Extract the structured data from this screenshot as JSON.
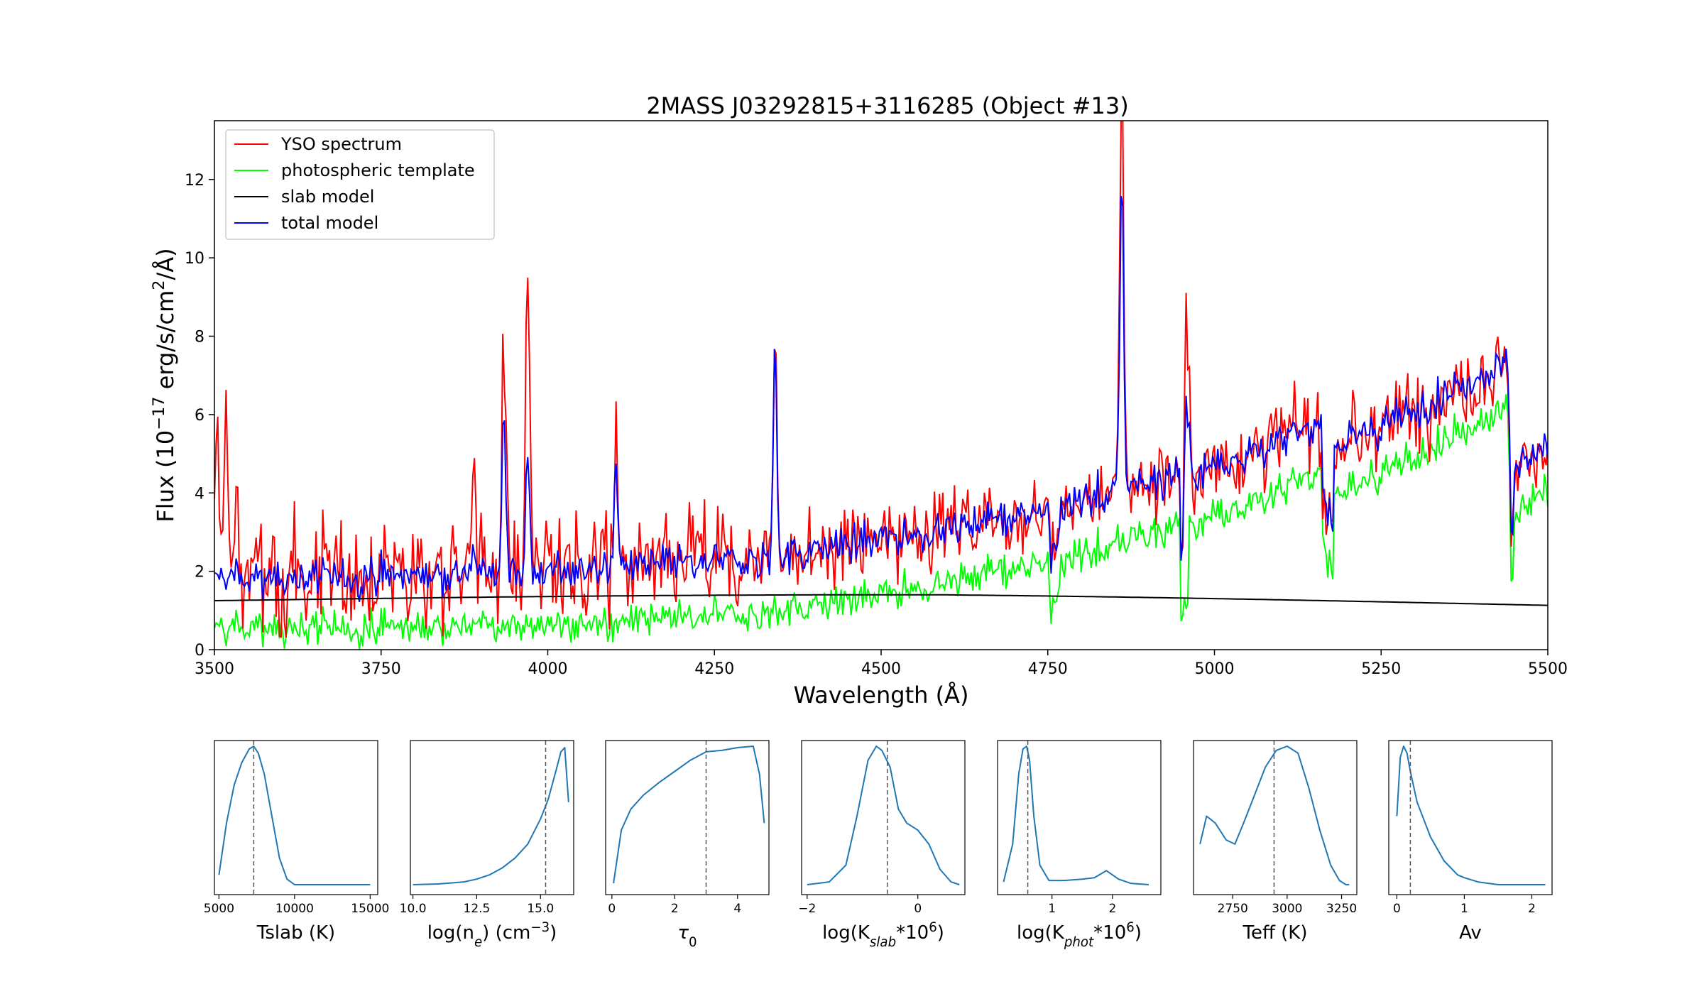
{
  "chart_data": [
    {
      "type": "line",
      "title": "2MASS J03292815+3116285 (Object #13)",
      "xlabel": "Wavelength (Å)",
      "ylabel_parts": [
        "Flux (10",
        "−17",
        " erg/s/cm",
        "2",
        "/Å)"
      ],
      "xlim": [
        3500,
        5500
      ],
      "ylim": [
        0,
        13.5
      ],
      "xticks": [
        3500,
        3750,
        4000,
        4250,
        4500,
        4750,
        5000,
        5250,
        5500
      ],
      "yticks": [
        0,
        2,
        4,
        6,
        8,
        10,
        12
      ],
      "legend_position": "upper-left",
      "colors": {
        "yso": "#ff0000",
        "photosphere": "#00ff00",
        "slab": "#000000",
        "total": "#0000ff"
      },
      "series": [
        {
          "key": "yso",
          "name": "YSO spectrum"
        },
        {
          "key": "photosphere",
          "name": "photospheric template"
        },
        {
          "key": "slab",
          "name": "slab model"
        },
        {
          "key": "total",
          "name": "total model"
        }
      ],
      "emission_lines": [
        {
          "x": 3504,
          "yso": 6.2,
          "total": 2.0
        },
        {
          "x": 3517,
          "yso": 6.9,
          "total": 2.2
        },
        {
          "x": 3533,
          "yso": 4.8,
          "total": 2.0
        },
        {
          "x": 3889,
          "yso": 4.0,
          "total": 2.5
        },
        {
          "x": 3934,
          "yso": 8.5,
          "total": 6.2
        },
        {
          "x": 3970,
          "yso": 9.6,
          "total": 5.0
        },
        {
          "x": 4102,
          "yso": 5.5,
          "total": 4.6
        },
        {
          "x": 4341,
          "yso": 7.3,
          "total": 7.2
        },
        {
          "x": 4861,
          "yso": 13.4,
          "total": 10.0
        },
        {
          "x": 4958,
          "yso": 8.4,
          "total": 6.0
        }
      ]
    },
    {
      "type": "line",
      "xlabel": "Tslab (K)",
      "xlim": [
        4700,
        15500
      ],
      "xticks": [
        5000,
        10000,
        15000
      ],
      "ref": 7300,
      "x": [
        5000,
        5500,
        6000,
        6500,
        7000,
        7300,
        7600,
        8000,
        8500,
        9000,
        9500,
        10000,
        11000,
        12000,
        13000,
        14000,
        15000
      ],
      "values": [
        0.08,
        0.45,
        0.72,
        0.88,
        0.98,
        1.0,
        0.95,
        0.8,
        0.5,
        0.2,
        0.05,
        0.01,
        0.01,
        0.01,
        0.01,
        0.01,
        0.01
      ]
    },
    {
      "type": "line",
      "xlabel_parts": [
        "log(n",
        "e",
        ") (cm",
        "−3",
        ")"
      ],
      "xlim": [
        9.9,
        16.3
      ],
      "xticks": [
        10.0,
        12.5,
        15.0
      ],
      "xtick_labels": [
        "10.0",
        "12.5",
        "15.0"
      ],
      "ref": 15.2,
      "x": [
        10.0,
        11.0,
        12.0,
        12.5,
        13.0,
        13.5,
        14.0,
        14.5,
        15.0,
        15.3,
        15.6,
        15.8,
        15.95,
        16.1
      ],
      "values": [
        0.01,
        0.015,
        0.03,
        0.05,
        0.08,
        0.13,
        0.2,
        0.3,
        0.48,
        0.62,
        0.82,
        0.96,
        0.99,
        0.6
      ]
    },
    {
      "type": "line",
      "xlabel_parts": [
        "τ",
        "0"
      ],
      "xlim": [
        -0.2,
        5.0
      ],
      "xticks": [
        0,
        2,
        4
      ],
      "ref": 3.0,
      "x": [
        0.05,
        0.3,
        0.6,
        1.0,
        1.5,
        2.0,
        2.5,
        3.0,
        3.5,
        4.0,
        4.5,
        4.7,
        4.85
      ],
      "values": [
        0.02,
        0.4,
        0.55,
        0.65,
        0.74,
        0.82,
        0.9,
        0.96,
        0.97,
        0.99,
        1.0,
        0.8,
        0.45
      ]
    },
    {
      "type": "line",
      "xlabel_parts": [
        "log(K",
        "slab",
        "*10",
        "6",
        ")"
      ],
      "xlim": [
        -2.1,
        0.85
      ],
      "xticks": [
        -2,
        0
      ],
      "xtick_labels": [
        "−2",
        "0"
      ],
      "ref": -0.55,
      "x": [
        -2.0,
        -1.6,
        -1.3,
        -1.1,
        -0.9,
        -0.75,
        -0.65,
        -0.5,
        -0.35,
        -0.2,
        0.0,
        0.2,
        0.4,
        0.6,
        0.75
      ],
      "values": [
        0.01,
        0.03,
        0.15,
        0.5,
        0.9,
        1.0,
        0.97,
        0.85,
        0.55,
        0.45,
        0.4,
        0.3,
        0.12,
        0.03,
        0.01
      ]
    },
    {
      "type": "line",
      "xlabel_parts": [
        "log(K",
        "phot",
        "*10",
        "6",
        ")"
      ],
      "xlim": [
        0.1,
        2.8
      ],
      "xticks": [
        1,
        2
      ],
      "ref": 0.6,
      "x": [
        0.2,
        0.35,
        0.45,
        0.52,
        0.58,
        0.63,
        0.7,
        0.8,
        0.95,
        1.2,
        1.5,
        1.7,
        1.9,
        2.1,
        2.3,
        2.6
      ],
      "values": [
        0.03,
        0.3,
        0.8,
        0.98,
        1.0,
        0.9,
        0.5,
        0.15,
        0.04,
        0.04,
        0.05,
        0.06,
        0.11,
        0.05,
        0.02,
        0.01
      ]
    },
    {
      "type": "line",
      "xlabel": "Teff (K)",
      "xlim": [
        2570,
        3320
      ],
      "xticks": [
        2750,
        3000,
        3250
      ],
      "ref": 2940,
      "x": [
        2600,
        2630,
        2670,
        2720,
        2760,
        2800,
        2850,
        2900,
        2950,
        3000,
        3050,
        3100,
        3150,
        3200,
        3240,
        3270,
        3285
      ],
      "values": [
        0.3,
        0.5,
        0.45,
        0.33,
        0.3,
        0.45,
        0.65,
        0.85,
        0.97,
        1.0,
        0.95,
        0.7,
        0.4,
        0.15,
        0.04,
        0.01,
        0.01
      ]
    },
    {
      "type": "line",
      "xlabel": "Av",
      "xlim": [
        -0.12,
        2.3
      ],
      "xticks": [
        0,
        1,
        2
      ],
      "ref": 0.2,
      "x": [
        0.0,
        0.05,
        0.1,
        0.15,
        0.2,
        0.3,
        0.5,
        0.7,
        0.9,
        1.0,
        1.2,
        1.5,
        1.8,
        2.0,
        2.2
      ],
      "values": [
        0.5,
        0.92,
        1.0,
        0.95,
        0.82,
        0.6,
        0.35,
        0.18,
        0.08,
        0.06,
        0.03,
        0.01,
        0.01,
        0.01,
        0.01
      ]
    }
  ]
}
